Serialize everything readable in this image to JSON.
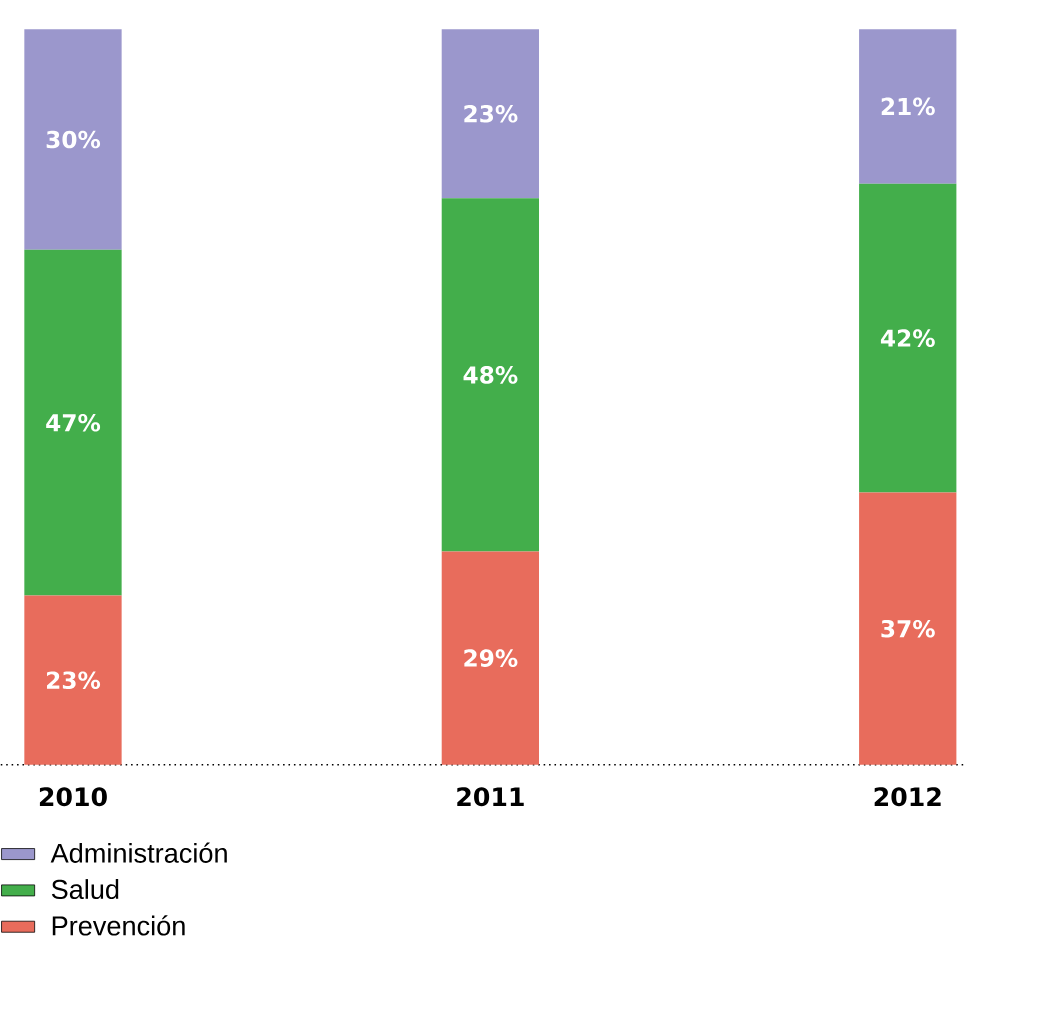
{
  "chart_data": {
    "type": "bar",
    "stacked": true,
    "categories": [
      "2010",
      "2011",
      "2012"
    ],
    "ylim": [
      0,
      100
    ],
    "legend": "bottom left",
    "tick_labels": "x",
    "series": [
      {
        "name": "Prevención",
        "color": "#e86c5c",
        "values": [
          23,
          29,
          37
        ],
        "value_labels": [
          "23%",
          "29%",
          "37%"
        ]
      },
      {
        "name": "Salud",
        "color": "#43ae4b",
        "values": [
          47,
          48,
          42
        ],
        "value_labels": [
          "47%",
          "48%",
          "42%"
        ]
      },
      {
        "name": "Administración",
        "color": "#9b97cc",
        "values": [
          30,
          23,
          21
        ],
        "value_labels": [
          "30%",
          "23%",
          "21%"
        ]
      }
    ]
  }
}
